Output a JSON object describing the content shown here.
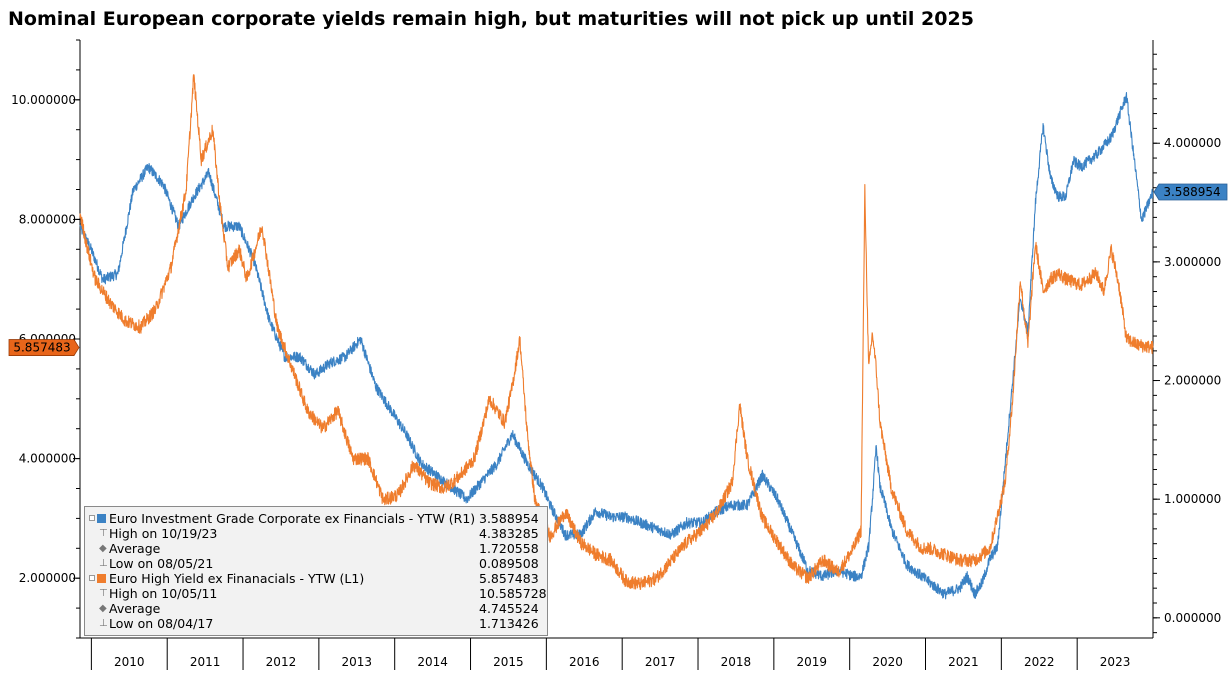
{
  "chart_data": {
    "type": "line",
    "title": "Nominal European corporate yields remain high, but maturities will not pick up until 2025",
    "x_ticks": [
      "2010",
      "2011",
      "2012",
      "2013",
      "2014",
      "2015",
      "2016",
      "2017",
      "2018",
      "2019",
      "2020",
      "2021",
      "2022",
      "2023"
    ],
    "xlim": [
      2009.8,
      2023.95
    ],
    "left_axis": {
      "ticks": [
        "2.000000",
        "4.000000",
        "6.000000",
        "8.000000",
        "10.000000"
      ],
      "ylim": [
        1.0,
        11.0
      ]
    },
    "right_axis": {
      "ticks": [
        "0.000000",
        "1.000000",
        "2.000000",
        "3.000000",
        "4.000000"
      ],
      "ylim": [
        -0.17,
        4.87
      ]
    },
    "series": [
      {
        "name": "Euro Investment Grade Corporate ex Financials - YTW (R1)",
        "axis": "right",
        "color": "#3b82c4",
        "last_value_label": "3.588954",
        "x": [
          2009.8,
          2009.95,
          2010.1,
          2010.3,
          2010.5,
          2010.7,
          2010.9,
          2011.1,
          2011.3,
          2011.5,
          2011.7,
          2011.9,
          2012.1,
          2012.3,
          2012.5,
          2012.7,
          2012.9,
          2013.1,
          2013.3,
          2013.5,
          2013.7,
          2013.9,
          2014.1,
          2014.3,
          2014.5,
          2014.7,
          2014.9,
          2015.1,
          2015.3,
          2015.5,
          2015.7,
          2015.9,
          2016.0,
          2016.2,
          2016.4,
          2016.6,
          2016.8,
          2017.0,
          2017.2,
          2017.4,
          2017.6,
          2017.8,
          2018.0,
          2018.2,
          2018.4,
          2018.6,
          2018.8,
          2019.0,
          2019.2,
          2019.4,
          2019.6,
          2019.8,
          2020.0,
          2020.1,
          2020.2,
          2020.25,
          2020.3,
          2020.35,
          2020.4,
          2020.5,
          2020.6,
          2020.7,
          2020.8,
          2020.9,
          2021.0,
          2021.2,
          2021.4,
          2021.5,
          2021.6,
          2021.7,
          2021.8,
          2021.9,
          2022.0,
          2022.1,
          2022.2,
          2022.3,
          2022.4,
          2022.5,
          2022.6,
          2022.7,
          2022.8,
          2022.9,
          2023.0,
          2023.2,
          2023.4,
          2023.6,
          2023.8,
          2023.95
        ],
        "values": [
          3.3,
          3.1,
          2.85,
          2.9,
          3.6,
          3.8,
          3.65,
          3.3,
          3.55,
          3.75,
          3.3,
          3.3,
          3.0,
          2.5,
          2.2,
          2.2,
          2.05,
          2.15,
          2.2,
          2.35,
          1.95,
          1.75,
          1.55,
          1.3,
          1.2,
          1.1,
          1.0,
          1.15,
          1.3,
          1.55,
          1.3,
          1.1,
          0.95,
          0.7,
          0.7,
          0.9,
          0.85,
          0.85,
          0.8,
          0.75,
          0.7,
          0.8,
          0.8,
          0.9,
          0.95,
          0.95,
          1.2,
          1.0,
          0.7,
          0.4,
          0.35,
          0.4,
          0.35,
          0.35,
          0.6,
          1.0,
          1.45,
          1.1,
          1.0,
          0.75,
          0.6,
          0.45,
          0.4,
          0.35,
          0.3,
          0.2,
          0.25,
          0.35,
          0.2,
          0.3,
          0.5,
          0.6,
          1.3,
          2.0,
          2.7,
          2.4,
          3.5,
          4.15,
          3.7,
          3.55,
          3.55,
          3.85,
          3.8,
          3.9,
          4.05,
          4.4,
          3.35,
          3.589
        ]
      },
      {
        "name": "Euro High Yield ex Finanacials - YTW (L1)",
        "axis": "left",
        "color": "#ef7d2d",
        "last_value_label": "5.857483",
        "x": [
          2009.8,
          2009.9,
          2010.0,
          2010.1,
          2010.2,
          2010.4,
          2010.6,
          2010.8,
          2011.0,
          2011.2,
          2011.3,
          2011.4,
          2011.55,
          2011.65,
          2011.75,
          2011.9,
          2012.0,
          2012.2,
          2012.4,
          2012.6,
          2012.8,
          2013.0,
          2013.2,
          2013.4,
          2013.6,
          2013.8,
          2014.0,
          2014.2,
          2014.4,
          2014.6,
          2014.8,
          2015.0,
          2015.2,
          2015.4,
          2015.5,
          2015.6,
          2015.7,
          2015.8,
          2016.0,
          2016.2,
          2016.4,
          2016.6,
          2016.8,
          2017.0,
          2017.2,
          2017.4,
          2017.6,
          2017.8,
          2018.0,
          2018.2,
          2018.4,
          2018.5,
          2018.6,
          2018.8,
          2019.0,
          2019.2,
          2019.4,
          2019.6,
          2019.8,
          2020.0,
          2020.1,
          2020.15,
          2020.2,
          2020.25,
          2020.3,
          2020.35,
          2020.5,
          2020.7,
          2020.9,
          2021.0,
          2021.2,
          2021.4,
          2021.6,
          2021.8,
          2022.0,
          2022.1,
          2022.2,
          2022.3,
          2022.4,
          2022.5,
          2022.6,
          2022.7,
          2022.8,
          2023.0,
          2023.2,
          2023.3,
          2023.4,
          2023.5,
          2023.6,
          2023.75,
          2023.95
        ],
        "values": [
          8.1,
          7.5,
          7.0,
          6.8,
          6.6,
          6.3,
          6.2,
          6.5,
          7.2,
          8.5,
          10.4,
          9.0,
          9.5,
          8.2,
          7.2,
          7.5,
          7.0,
          7.9,
          6.2,
          5.5,
          4.8,
          4.5,
          4.8,
          4.0,
          4.0,
          3.3,
          3.4,
          3.9,
          3.6,
          3.5,
          3.7,
          4.0,
          5.0,
          4.6,
          5.2,
          6.0,
          4.4,
          3.3,
          2.7,
          3.1,
          2.6,
          2.4,
          2.3,
          1.95,
          1.9,
          2.0,
          2.3,
          2.6,
          2.8,
          3.1,
          3.6,
          4.9,
          4.0,
          3.0,
          2.6,
          2.2,
          2.0,
          2.3,
          2.1,
          2.5,
          2.8,
          8.5,
          5.5,
          6.1,
          5.5,
          4.6,
          3.5,
          2.8,
          2.5,
          2.5,
          2.4,
          2.3,
          2.3,
          2.5,
          3.6,
          5.0,
          7.0,
          5.9,
          7.6,
          6.8,
          7.0,
          7.1,
          7.0,
          6.9,
          7.1,
          6.8,
          7.5,
          6.9,
          6.0,
          5.9,
          5.857
        ]
      }
    ],
    "legend": {
      "placement": "bottom-left",
      "rows": [
        {
          "kind": "series",
          "series": 0,
          "label": "Euro Investment Grade Corporate ex Financials - YTW (R1)",
          "value": "3.588954"
        },
        {
          "kind": "stat",
          "glyph": "⊤",
          "label": "High on 10/19/23",
          "value": "4.383285"
        },
        {
          "kind": "stat",
          "glyph": "◆",
          "label": "Average",
          "value": "1.720558"
        },
        {
          "kind": "stat",
          "glyph": "⊥",
          "label": "Low on 08/05/21",
          "value": "0.089508"
        },
        {
          "kind": "series",
          "series": 1,
          "label": "Euro High Yield ex Finanacials - YTW (L1)",
          "value": "5.857483"
        },
        {
          "kind": "stat",
          "glyph": "⊤",
          "label": "High on 10/05/11",
          "value": "10.585728"
        },
        {
          "kind": "stat",
          "glyph": "◆",
          "label": "Average",
          "value": "4.745524"
        },
        {
          "kind": "stat",
          "glyph": "⊥",
          "label": "Low on 08/04/17",
          "value": "1.713426"
        }
      ]
    }
  }
}
